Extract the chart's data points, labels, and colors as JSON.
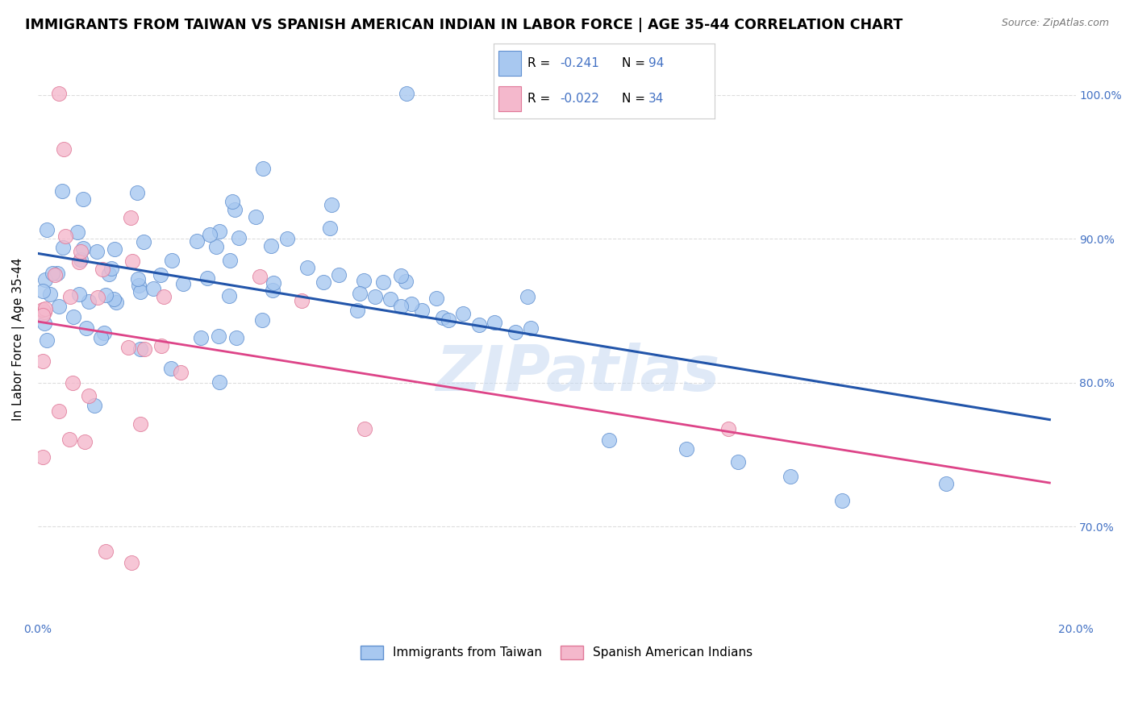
{
  "title": "IMMIGRANTS FROM TAIWAN VS SPANISH AMERICAN INDIAN IN LABOR FORCE | AGE 35-44 CORRELATION CHART",
  "source": "Source: ZipAtlas.com",
  "ylabel": "In Labor Force | Age 35-44",
  "xlim": [
    0.0,
    0.2
  ],
  "ylim": [
    0.635,
    1.025
  ],
  "x_ticks": [
    0.0,
    0.04,
    0.08,
    0.12,
    0.16,
    0.2
  ],
  "x_tick_labels": [
    "0.0%",
    "",
    "",
    "",
    "",
    "20.0%"
  ],
  "y_ticks": [
    0.7,
    0.8,
    0.9,
    1.0
  ],
  "y_tick_labels": [
    "70.0%",
    "80.0%",
    "90.0%",
    "100.0%"
  ],
  "legend_blue_R": "-0.241",
  "legend_blue_N": "94",
  "legend_pink_R": "-0.022",
  "legend_pink_N": "34",
  "watermark": "ZIPatlas",
  "title_fontsize": 12.5,
  "axis_label_fontsize": 11,
  "tick_fontsize": 10,
  "source_fontsize": 9,
  "blue_scatter_color": "#a8c8f0",
  "pink_scatter_color": "#f4b8cc",
  "blue_edge_color": "#6090d0",
  "pink_edge_color": "#e07898",
  "blue_line_color": "#2255aa",
  "pink_line_color": "#dd4488",
  "grid_color": "#dddddd",
  "tick_color": "#4472c4",
  "r_value_color": "#4472c4",
  "n_value_color": "#4472c4"
}
